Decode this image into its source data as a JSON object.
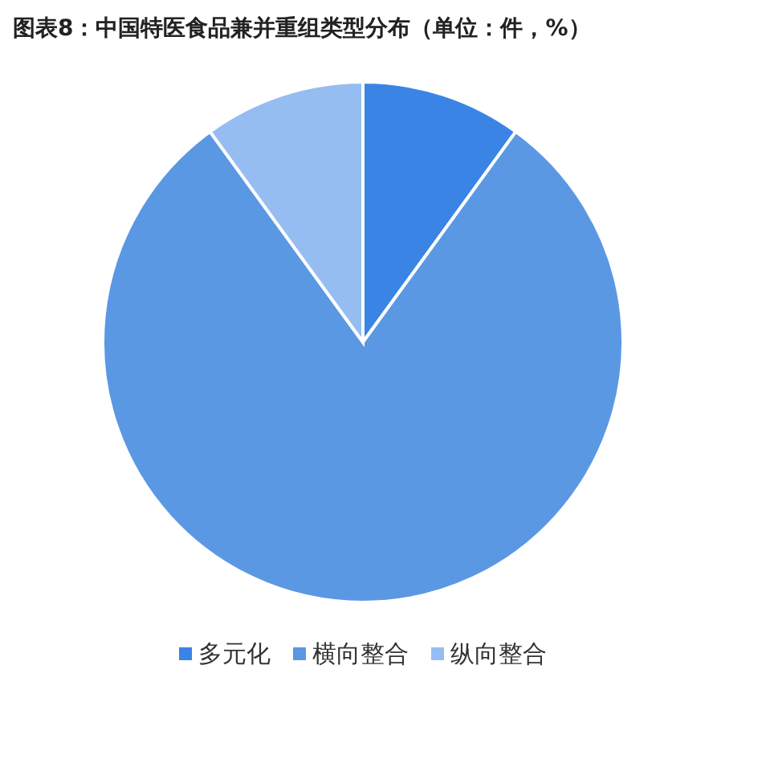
{
  "chart_data": {
    "type": "pie",
    "title": "图表8：中国特医食品兼并重组类型分布（单位：件，%）",
    "categories": [
      "多元化",
      "横向整合",
      "纵向整合"
    ],
    "values": [
      10,
      80,
      10
    ],
    "colors": [
      "#3a84e6",
      "#5b98e4",
      "#95bdf2"
    ],
    "legend": "bottom"
  }
}
